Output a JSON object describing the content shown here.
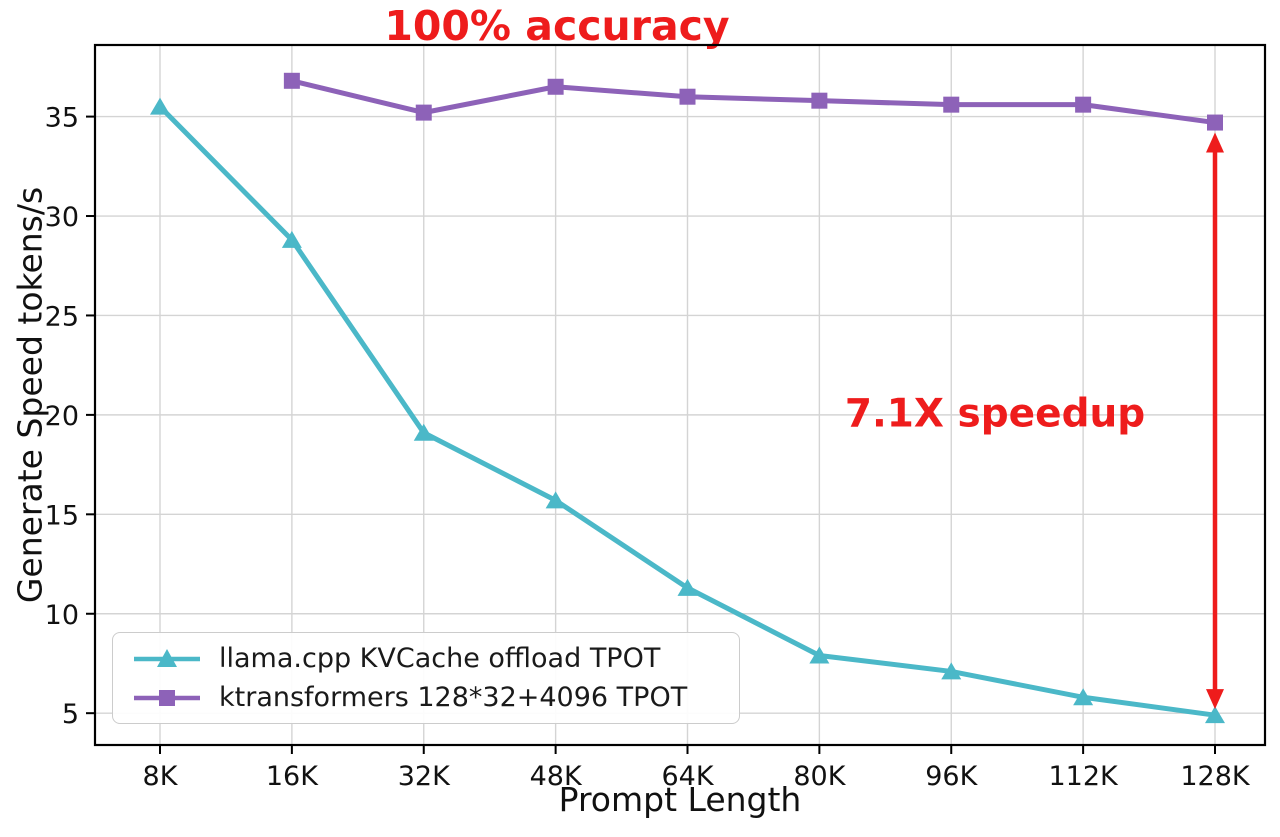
{
  "chart_data": {
    "type": "line",
    "title": "",
    "xlabel": "Prompt Length",
    "ylabel": "Generate Speed tokens/s",
    "categories": [
      "8K",
      "16K",
      "32K",
      "48K",
      "64K",
      "80K",
      "96K",
      "112K",
      "128K"
    ],
    "y_ticks": [
      5,
      10,
      15,
      20,
      25,
      30,
      35
    ],
    "ylim": [
      3.4,
      38.6
    ],
    "grid": true,
    "legend_position": "lower left",
    "series": [
      {
        "name": "llama.cpp KVCache offload TPOT",
        "color": "#4bb8c8",
        "marker": "triangle",
        "values": [
          35.5,
          28.8,
          19.1,
          15.7,
          11.3,
          7.9,
          7.1,
          5.8,
          4.9
        ]
      },
      {
        "name": "ktransformers 128*32+4096 TPOT",
        "color": "#8d62b8",
        "marker": "square",
        "values": [
          null,
          36.8,
          35.2,
          36.5,
          36.0,
          35.8,
          35.6,
          35.6,
          34.7
        ]
      }
    ],
    "annotations": {
      "accuracy": {
        "text": "100% accuracy",
        "color": "#ee1c1c"
      },
      "speedup": {
        "text": "7.1X speedup",
        "color": "#ee1c1c",
        "x_category": "128K",
        "y_from": 34.7,
        "y_to": 4.9
      }
    }
  }
}
